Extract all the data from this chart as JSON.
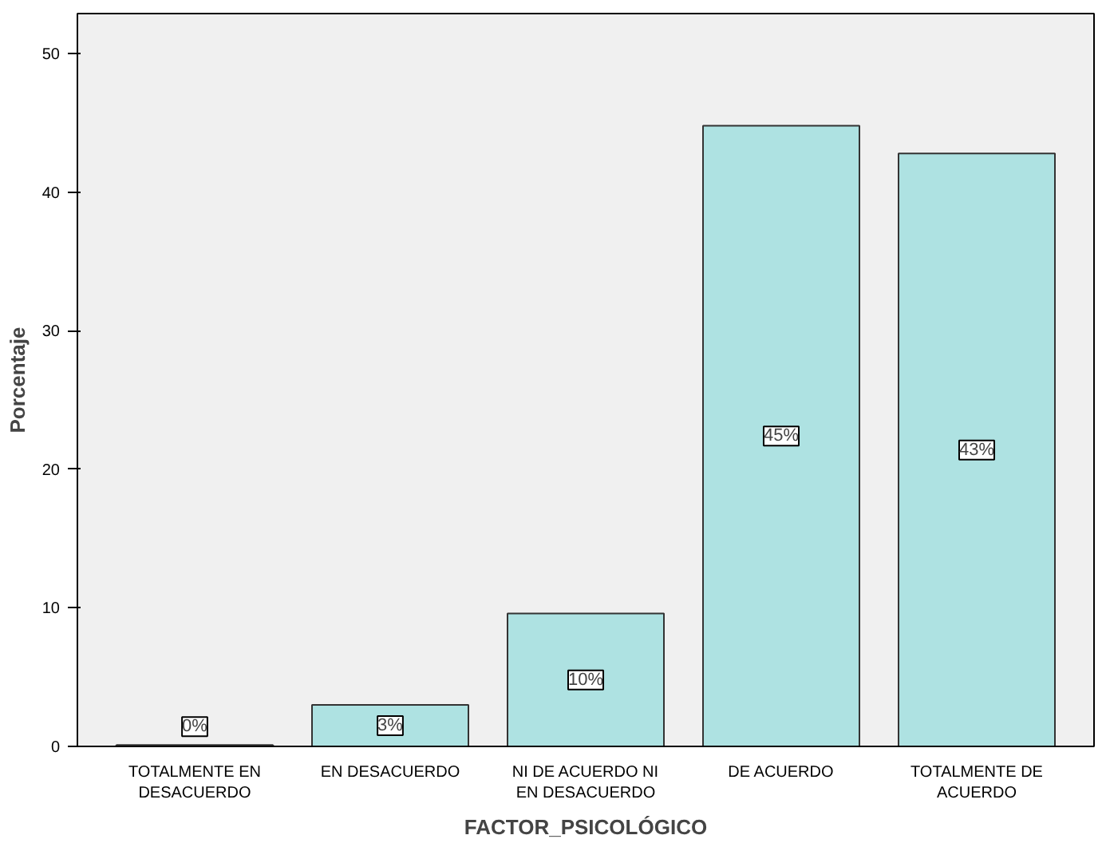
{
  "chart_data": {
    "type": "bar",
    "xlabel": "FACTOR_PSICOLÓGICO",
    "ylabel": "Porcentaje",
    "categories": [
      "TOTALMENTE EN DESACUERDO",
      "EN DESACUERDO",
      "NI DE ACUERDO NI EN DESACUERDO",
      "DE ACUERDO",
      "TOTALMENTE DE ACUERDO"
    ],
    "values": [
      0.1,
      3.0,
      9.6,
      44.8,
      42.8
    ],
    "value_labels": [
      "0%",
      "3%",
      "10%",
      "45%",
      "43%"
    ],
    "color": "#aee2e2",
    "ylim": [
      0,
      52.9
    ],
    "yticks": [
      0,
      10,
      20,
      30,
      40,
      50
    ],
    "grid": false
  }
}
